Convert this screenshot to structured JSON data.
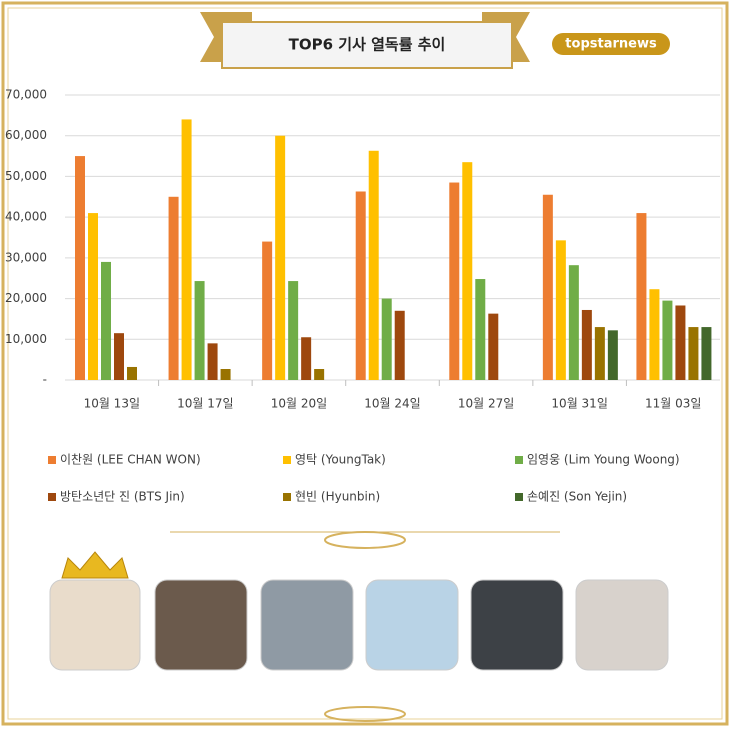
{
  "chart_data": {
    "type": "bar",
    "title": "TOP6 기사 열독률 추이",
    "logo": "topstarnews",
    "categories": [
      "10월 13일",
      "10월 17일",
      "10월 20일",
      "10월 24일",
      "10월 27일",
      "10월 31일",
      "11월 03일"
    ],
    "series": [
      {
        "name": "이찬원 (LEE CHAN WON)",
        "color": "#ed7d31",
        "values": [
          55000,
          45000,
          34000,
          46300,
          48500,
          45500,
          41000
        ]
      },
      {
        "name": "영탁 (YoungTak)",
        "color": "#ffc000",
        "values": [
          41000,
          64000,
          60000,
          56300,
          53500,
          34300,
          22300
        ]
      },
      {
        "name": "임영웅 (Lim Young Woong)",
        "color": "#70ad47",
        "values": [
          29000,
          24300,
          24300,
          20000,
          24800,
          28200,
          19500
        ]
      },
      {
        "name": "방탄소년단 진 (BTS Jin)",
        "color": "#9e480e",
        "values": [
          11500,
          9000,
          10500,
          17000,
          16300,
          17200,
          18300
        ]
      },
      {
        "name": "현빈 (Hyunbin)",
        "color": "#997300",
        "values": [
          3200,
          2700,
          2700,
          null,
          null,
          13000,
          13000
        ]
      },
      {
        "name": "손예진 (Son Yejin)",
        "color": "#43682b",
        "values": [
          null,
          null,
          null,
          null,
          null,
          12200,
          13000
        ]
      }
    ],
    "ylim": [
      0,
      70000
    ],
    "yticks": [
      {
        "value": 0,
        "label": "-"
      },
      {
        "value": 10000,
        "label": "10,000"
      },
      {
        "value": 20000,
        "label": "20,000"
      },
      {
        "value": 30000,
        "label": "30,000"
      },
      {
        "value": 40000,
        "label": "40,000"
      },
      {
        "value": 50000,
        "label": "50,000"
      },
      {
        "value": 60000,
        "label": "60,000"
      },
      {
        "value": 70000,
        "label": "70,000"
      }
    ],
    "grid": true
  }
}
